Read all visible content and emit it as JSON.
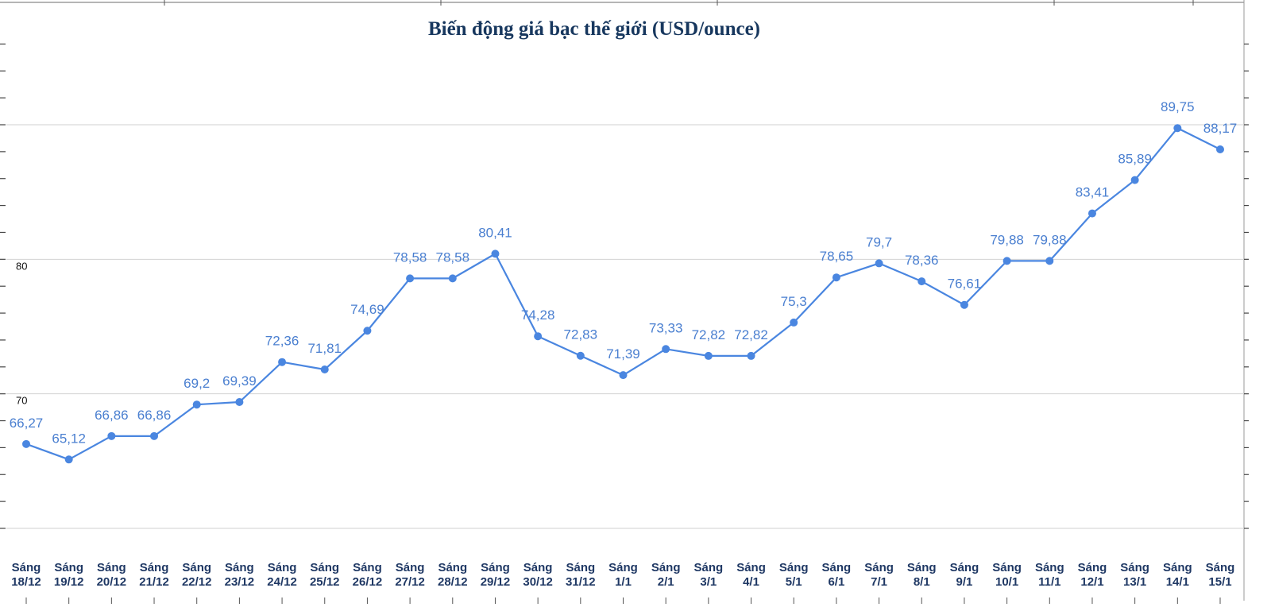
{
  "chart_data": {
    "type": "line",
    "title": "Biến động giá bạc thế giới (USD/ounce)",
    "xlabel": "",
    "ylabel": "",
    "categories": [
      "Sáng 18/12",
      "Sáng 19/12",
      "Sáng 20/12",
      "Sáng 21/12",
      "Sáng 22/12",
      "Sáng 23/12",
      "Sáng 24/12",
      "Sáng 25/12",
      "Sáng 26/12",
      "Sáng 27/12",
      "Sáng 28/12",
      "Sáng 29/12",
      "Sáng 30/12",
      "Sáng 31/12",
      "Sáng 1/1",
      "Sáng 2/1",
      "Sáng 3/1",
      "Sáng 4/1",
      "Sáng 5/1",
      "Sáng 6/1",
      "Sáng 7/1",
      "Sáng 8/1",
      "Sáng 9/1",
      "Sáng 10/1",
      "Sáng 11/1",
      "Sáng 12/1",
      "Sáng 13/1",
      "Sáng 14/1",
      "Sáng 15/1"
    ],
    "values": [
      66.27,
      65.12,
      66.86,
      66.86,
      69.2,
      69.39,
      72.36,
      71.81,
      74.69,
      78.58,
      78.58,
      80.41,
      74.28,
      72.83,
      71.39,
      73.33,
      72.82,
      72.82,
      75.3,
      78.65,
      79.7,
      78.36,
      76.61,
      79.88,
      79.88,
      83.41,
      85.89,
      89.75,
      88.17
    ],
    "decimal_separator": ",",
    "ylim": [
      60,
      90
    ],
    "gridlines": [
      60,
      70,
      80,
      90
    ],
    "ytick_labels": [
      {
        "value": 80,
        "label": "80"
      },
      {
        "value": 70,
        "label": "70"
      }
    ],
    "grid": true,
    "legend": "none"
  },
  "colors": {
    "line": "#4a86e0",
    "point": "#4a86e0",
    "data_label": "#4a7fd0",
    "title": "#17375e",
    "category_label": "#1f3864",
    "grid": "#d2d2d2",
    "frame": "#6b6b6b"
  }
}
